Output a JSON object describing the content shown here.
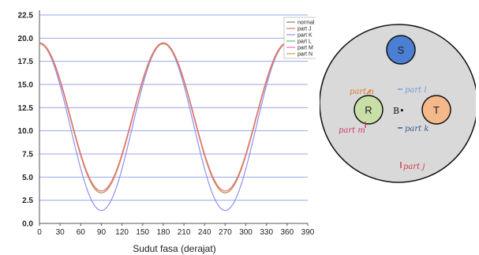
{
  "chart_data": {
    "type": "line",
    "title": "",
    "xlabel": "Sudut fasa (derajat)",
    "ylabel": "",
    "xlim": [
      0,
      390
    ],
    "ylim": [
      0,
      22.5
    ],
    "xticks": [
      "0",
      "30",
      "60",
      "90",
      "120",
      "150",
      "180",
      "210",
      "240",
      "270",
      "300",
      "330",
      "360",
      "390"
    ],
    "yticks": [
      "0.0",
      "2.5",
      "5.0",
      "7.5",
      "10.0",
      "12.5",
      "15.0",
      "17.5",
      "20.0",
      "22.5"
    ],
    "grid": "horizontal",
    "legend_position": "top-right",
    "series": [
      {
        "name": "normal",
        "color": "#808080",
        "min": 3.3,
        "max": 19.4
      },
      {
        "name": "part J",
        "color": "#e86a6a",
        "min": 3.5,
        "max": 19.5
      },
      {
        "name": "part K",
        "color": "#8f8ff0",
        "min": 1.4,
        "max": 19.4
      },
      {
        "name": "part L",
        "color": "#6ab86a",
        "min": 3.3,
        "max": 19.4
      },
      {
        "name": "part M",
        "color": "#e86ac8",
        "min": 3.3,
        "max": 19.4
      },
      {
        "name": "part N",
        "color": "#c8a060",
        "min": 3.3,
        "max": 19.4
      }
    ]
  },
  "diagram": {
    "conductors": [
      {
        "label": "S",
        "fill": "#4a7fd4"
      },
      {
        "label": "R",
        "fill": "#c8e0a8"
      },
      {
        "label": "T",
        "fill": "#f4b88a"
      }
    ],
    "center_label": "B•",
    "parts": [
      {
        "label": "part n",
        "color": "#e07a30"
      },
      {
        "label": "part l",
        "color": "#7a9ad8"
      },
      {
        "label": "part m",
        "color": "#d43a6a"
      },
      {
        "label": "part k",
        "color": "#3a5a9a"
      },
      {
        "label": "part j",
        "color": "#d43a4a"
      }
    ]
  }
}
